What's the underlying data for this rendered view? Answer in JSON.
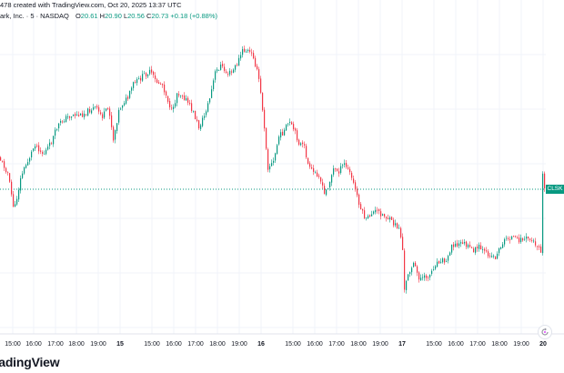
{
  "header": {
    "created_line": "478 created with TradingView.com, Oct 20, 2025 13:37 UTC",
    "symbol_line": "ark, Inc. · 5 · NASDAQ",
    "ohlc": {
      "o_label": "O",
      "o_value": "20.61",
      "h_label": "H",
      "h_value": "20.90",
      "l_label": "L",
      "l_value": "20.56",
      "c_label": "C",
      "c_value": "20.73",
      "change": "+0.18 (+0.88%)"
    }
  },
  "price_badge": {
    "label": "CLSK",
    "color": "#089981"
  },
  "colors": {
    "up": "#089981",
    "down": "#f23645",
    "last_line": "#089981",
    "grid": "#f0f3fa"
  },
  "logo": {
    "text": "radingView"
  },
  "icons": {
    "reset": "reset-chart-icon"
  },
  "chart_data": {
    "type": "candlestick",
    "last_value_line": true,
    "x_ticks": [
      "15:00",
      "16:00",
      "17:00",
      "18:00",
      "19:00",
      "15",
      "15:00",
      "16:00",
      "17:00",
      "18:00",
      "19:00",
      "16",
      "15:00",
      "16:00",
      "17:00",
      "18:00",
      "19:00",
      "17",
      "15:00",
      "16:00",
      "17:00",
      "18:00",
      "19:00",
      "20"
    ],
    "x_tick_pos": [
      14,
      37,
      61,
      84,
      108,
      132,
      167,
      191,
      215,
      239,
      263,
      287,
      322,
      346,
      370,
      394,
      418,
      442,
      477,
      501,
      525,
      549,
      573,
      597
    ],
    "x_tick_bold": [
      false,
      false,
      false,
      false,
      false,
      true,
      false,
      false,
      false,
      false,
      false,
      true,
      false,
      false,
      false,
      false,
      false,
      true,
      false,
      false,
      false,
      false,
      false,
      true
    ],
    "anchors": [
      [
        0,
        172
      ],
      [
        10,
        190
      ],
      [
        17,
        232
      ],
      [
        25,
        192
      ],
      [
        33,
        175
      ],
      [
        40,
        158
      ],
      [
        49,
        170
      ],
      [
        57,
        158
      ],
      [
        65,
        138
      ],
      [
        73,
        130
      ],
      [
        82,
        126
      ],
      [
        90,
        127
      ],
      [
        98,
        122
      ],
      [
        106,
        118
      ],
      [
        114,
        128
      ],
      [
        121,
        118
      ],
      [
        126,
        153
      ],
      [
        132,
        122
      ],
      [
        137,
        112
      ],
      [
        142,
        108
      ],
      [
        148,
        92
      ],
      [
        154,
        88
      ],
      [
        160,
        82
      ],
      [
        167,
        79
      ],
      [
        173,
        90
      ],
      [
        180,
        93
      ],
      [
        186,
        110
      ],
      [
        191,
        125
      ],
      [
        196,
        102
      ],
      [
        202,
        104
      ],
      [
        208,
        113
      ],
      [
        214,
        124
      ],
      [
        220,
        140
      ],
      [
        226,
        127
      ],
      [
        232,
        108
      ],
      [
        238,
        80
      ],
      [
        244,
        72
      ],
      [
        250,
        80
      ],
      [
        256,
        80
      ],
      [
        262,
        70
      ],
      [
        268,
        56
      ],
      [
        274,
        56
      ],
      [
        280,
        62
      ],
      [
        286,
        87
      ],
      [
        291,
        128
      ],
      [
        296,
        184
      ],
      [
        302,
        178
      ],
      [
        308,
        150
      ],
      [
        314,
        144
      ],
      [
        319,
        134
      ],
      [
        325,
        144
      ],
      [
        330,
        157
      ],
      [
        336,
        162
      ],
      [
        341,
        185
      ],
      [
        347,
        190
      ],
      [
        352,
        192
      ],
      [
        358,
        214
      ],
      [
        363,
        202
      ],
      [
        368,
        186
      ],
      [
        374,
        188
      ],
      [
        380,
        180
      ],
      [
        386,
        190
      ],
      [
        392,
        208
      ],
      [
        398,
        230
      ],
      [
        404,
        242
      ],
      [
        410,
        234
      ],
      [
        416,
        232
      ],
      [
        422,
        236
      ],
      [
        428,
        240
      ],
      [
        434,
        246
      ],
      [
        438,
        249
      ],
      [
        441,
        252
      ],
      [
        444,
        275
      ],
      [
        446,
        320
      ],
      [
        450,
        300
      ],
      [
        456,
        290
      ],
      [
        462,
        305
      ],
      [
        467,
        306
      ],
      [
        474,
        302
      ],
      [
        480,
        290
      ],
      [
        486,
        285
      ],
      [
        492,
        288
      ],
      [
        498,
        268
      ],
      [
        504,
        270
      ],
      [
        510,
        266
      ],
      [
        516,
        272
      ],
      [
        522,
        275
      ],
      [
        528,
        272
      ],
      [
        534,
        278
      ],
      [
        540,
        280
      ],
      [
        546,
        283
      ],
      [
        552,
        270
      ],
      [
        558,
        262
      ],
      [
        564,
        261
      ],
      [
        570,
        264
      ],
      [
        576,
        263
      ],
      [
        582,
        262
      ],
      [
        588,
        266
      ],
      [
        594,
        271
      ],
      [
        596,
        275
      ],
      [
        597,
        178
      ],
      [
        600,
        208
      ],
      [
        603,
        208
      ]
    ]
  }
}
